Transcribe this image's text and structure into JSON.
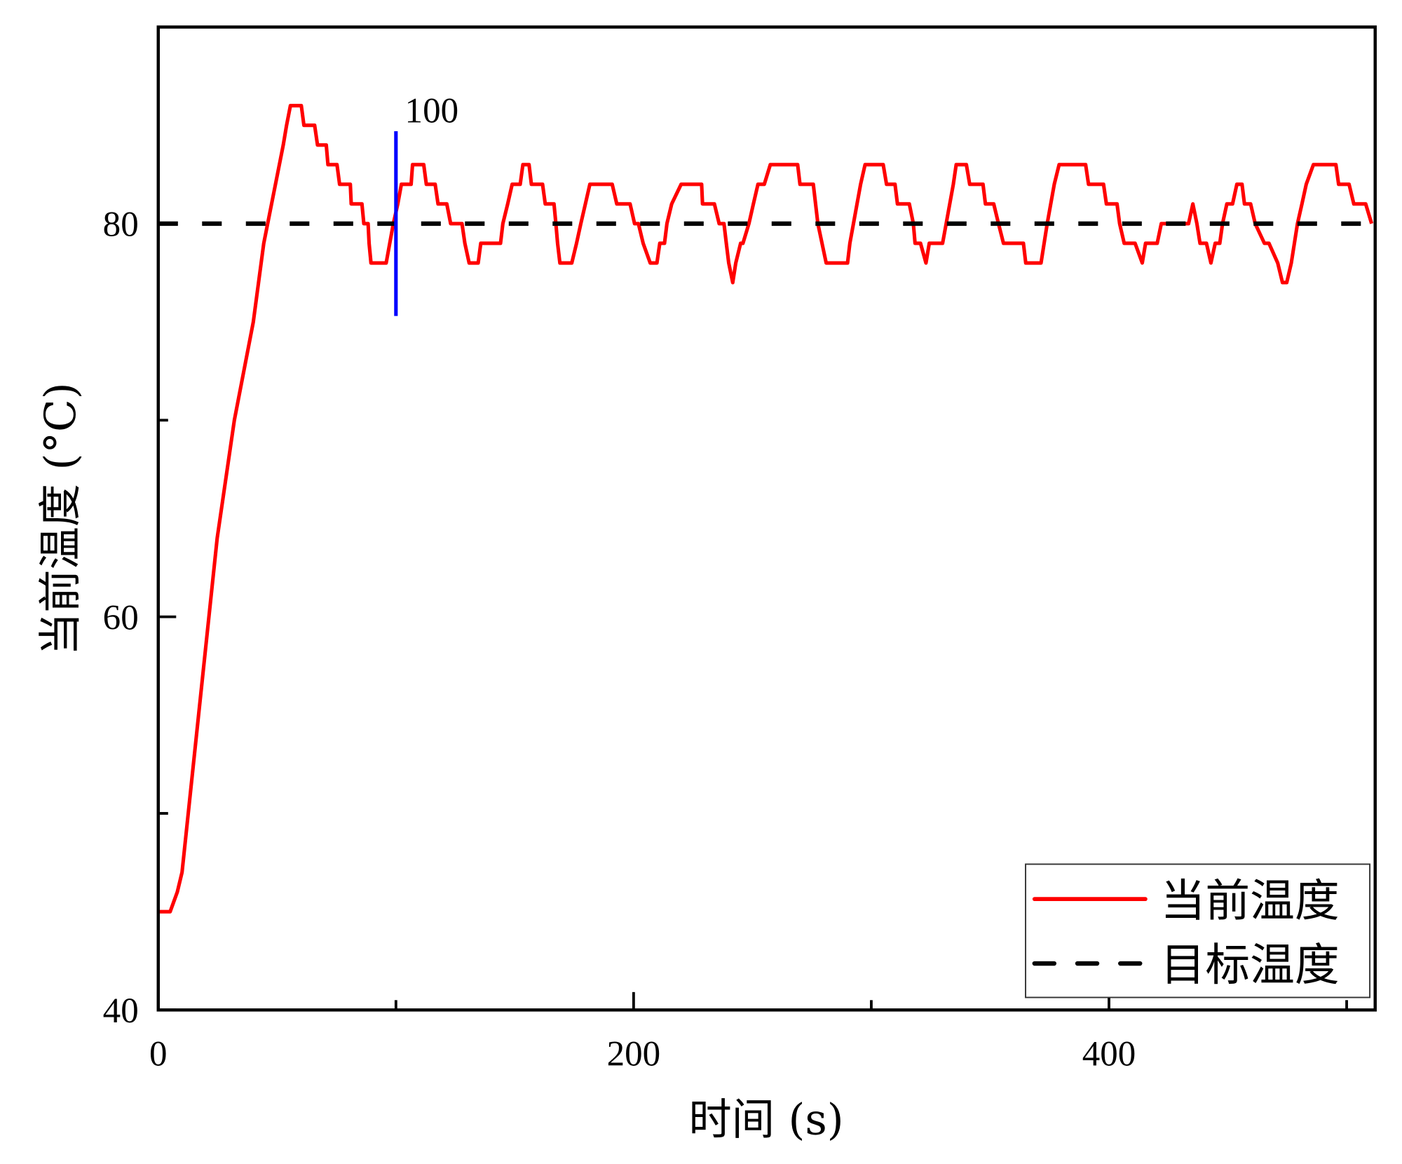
{
  "chart_data": {
    "type": "line",
    "title": "",
    "xlabel": "时间 (s)",
    "ylabel": "当前温度 (°C)",
    "xlim": [
      0,
      512
    ],
    "ylim": [
      40,
      90
    ],
    "x_ticks": [
      0,
      200,
      400
    ],
    "x_tick_labels": [
      "0",
      "200",
      "400"
    ],
    "x_minor_ticks": [
      100,
      300,
      500
    ],
    "y_ticks": [
      40,
      60,
      80
    ],
    "y_tick_labels": [
      "40",
      "60",
      "80"
    ],
    "y_minor_ticks": [
      50,
      70
    ],
    "grid": false,
    "legend_position": "bottom-right",
    "series": [
      {
        "name": "当前温度",
        "color": "#ff0000",
        "style": "solid",
        "points": [
          [
            0,
            45
          ],
          [
            5,
            45
          ],
          [
            8,
            46
          ],
          [
            10,
            47
          ],
          [
            24.8,
            64
          ],
          [
            32,
            70
          ],
          [
            40,
            75
          ],
          [
            44.4,
            79
          ],
          [
            52.6,
            84
          ],
          [
            54,
            85
          ],
          [
            55.6,
            86
          ],
          [
            60.2,
            86
          ],
          [
            61.3,
            85
          ],
          [
            65.8,
            85
          ],
          [
            67,
            84
          ],
          [
            70.7,
            84
          ],
          [
            71.4,
            83
          ],
          [
            75.2,
            83
          ],
          [
            76.3,
            82
          ],
          [
            80.8,
            82
          ],
          [
            81.2,
            81
          ],
          [
            85.7,
            81
          ],
          [
            86.5,
            80
          ],
          [
            88.3,
            80
          ],
          [
            88.7,
            79
          ],
          [
            89.5,
            78
          ],
          [
            95.9,
            78
          ],
          [
            97.4,
            79
          ],
          [
            98.9,
            80
          ],
          [
            100.8,
            81
          ],
          [
            102.3,
            82
          ],
          [
            106.4,
            82
          ],
          [
            107,
            83
          ],
          [
            111.7,
            83
          ],
          [
            112.8,
            82
          ],
          [
            116.5,
            82
          ],
          [
            117.7,
            81
          ],
          [
            121.4,
            81
          ],
          [
            123,
            80
          ],
          [
            127.8,
            80
          ],
          [
            129,
            79
          ],
          [
            130.8,
            78
          ],
          [
            134.6,
            78
          ],
          [
            135.7,
            79
          ],
          [
            144,
            79
          ],
          [
            145,
            80
          ],
          [
            147,
            81
          ],
          [
            148.9,
            82
          ],
          [
            152.3,
            82
          ],
          [
            153.4,
            83
          ],
          [
            156,
            83
          ],
          [
            157,
            82
          ],
          [
            161.7,
            82
          ],
          [
            162.8,
            81
          ],
          [
            166.5,
            81
          ],
          [
            167.3,
            80
          ],
          [
            168,
            79
          ],
          [
            169,
            78
          ],
          [
            174,
            78
          ],
          [
            176,
            79
          ],
          [
            177.8,
            80
          ],
          [
            179.7,
            81
          ],
          [
            181.6,
            82
          ],
          [
            191,
            82
          ],
          [
            192.9,
            81
          ],
          [
            198.5,
            81
          ],
          [
            200.4,
            80
          ],
          [
            202,
            80
          ],
          [
            204,
            79
          ],
          [
            207,
            78
          ],
          [
            209.8,
            78
          ],
          [
            211,
            79
          ],
          [
            213,
            79
          ],
          [
            214,
            80
          ],
          [
            216,
            81
          ],
          [
            220,
            82
          ],
          [
            228.6,
            82
          ],
          [
            229,
            81
          ],
          [
            234,
            81
          ],
          [
            236,
            80
          ],
          [
            238,
            80
          ],
          [
            239,
            79
          ],
          [
            240,
            78
          ],
          [
            241.7,
            77
          ],
          [
            243,
            78
          ],
          [
            245,
            79
          ],
          [
            246,
            79
          ],
          [
            248.5,
            80
          ],
          [
            250.4,
            81
          ],
          [
            252.3,
            82
          ],
          [
            255,
            82
          ],
          [
            257.5,
            83
          ],
          [
            269,
            83
          ],
          [
            270,
            82
          ],
          [
            275.6,
            82
          ],
          [
            277.5,
            80
          ],
          [
            281,
            78
          ],
          [
            290,
            78
          ],
          [
            291,
            79
          ],
          [
            292.5,
            80
          ],
          [
            294,
            81
          ],
          [
            295.5,
            82
          ],
          [
            297.4,
            83
          ],
          [
            305,
            83
          ],
          [
            306.4,
            82
          ],
          [
            310,
            82
          ],
          [
            311,
            81
          ],
          [
            316,
            81
          ],
          [
            317.7,
            80
          ],
          [
            318.4,
            79
          ],
          [
            320.7,
            79
          ],
          [
            323,
            78
          ],
          [
            324.4,
            79
          ],
          [
            330,
            79
          ],
          [
            331.5,
            80
          ],
          [
            333,
            81
          ],
          [
            334.5,
            82
          ],
          [
            335.7,
            83
          ],
          [
            340,
            83
          ],
          [
            341.4,
            82
          ],
          [
            347,
            82
          ],
          [
            348,
            81
          ],
          [
            351.5,
            81
          ],
          [
            353.5,
            80
          ],
          [
            355.6,
            79
          ],
          [
            364,
            79
          ],
          [
            365,
            78
          ],
          [
            371.4,
            78
          ],
          [
            374,
            80
          ],
          [
            377,
            82
          ],
          [
            379,
            83
          ],
          [
            390.2,
            83
          ],
          [
            391.4,
            82
          ],
          [
            397.7,
            82
          ],
          [
            398.9,
            81
          ],
          [
            403.4,
            81
          ],
          [
            404.5,
            80
          ],
          [
            406.4,
            79
          ],
          [
            411,
            79
          ],
          [
            414,
            78
          ],
          [
            415.4,
            79
          ],
          [
            420.3,
            79
          ],
          [
            422,
            80
          ],
          [
            433.5,
            80
          ],
          [
            435.3,
            81
          ],
          [
            437,
            80
          ],
          [
            438.3,
            79
          ],
          [
            441,
            79
          ],
          [
            442.9,
            78
          ],
          [
            444.7,
            79
          ],
          [
            446.6,
            79
          ],
          [
            447.8,
            80
          ],
          [
            449.6,
            81
          ],
          [
            452,
            81
          ],
          [
            453.8,
            82
          ],
          [
            456,
            82
          ],
          [
            457,
            81
          ],
          [
            459.6,
            81
          ],
          [
            461.5,
            80
          ],
          [
            465.4,
            79
          ],
          [
            467.3,
            79
          ],
          [
            471,
            78
          ],
          [
            473,
            77
          ],
          [
            474.8,
            77
          ],
          [
            476.7,
            78
          ],
          [
            479.3,
            80
          ],
          [
            481.2,
            81
          ],
          [
            483,
            82
          ],
          [
            486,
            83
          ],
          [
            495.5,
            83
          ],
          [
            496.6,
            82
          ],
          [
            501,
            82
          ],
          [
            503,
            81
          ],
          [
            508,
            81
          ],
          [
            510.5,
            80
          ]
        ]
      },
      {
        "name": "目标温度",
        "color": "#000000",
        "style": "dashed",
        "points": [
          [
            0,
            80
          ],
          [
            512,
            80
          ]
        ]
      }
    ],
    "annotations": [
      {
        "type": "vertical-line",
        "x": 100,
        "y_range": [
          75.3,
          84.7
        ],
        "color": "#0000ff",
        "label": "100"
      }
    ]
  }
}
